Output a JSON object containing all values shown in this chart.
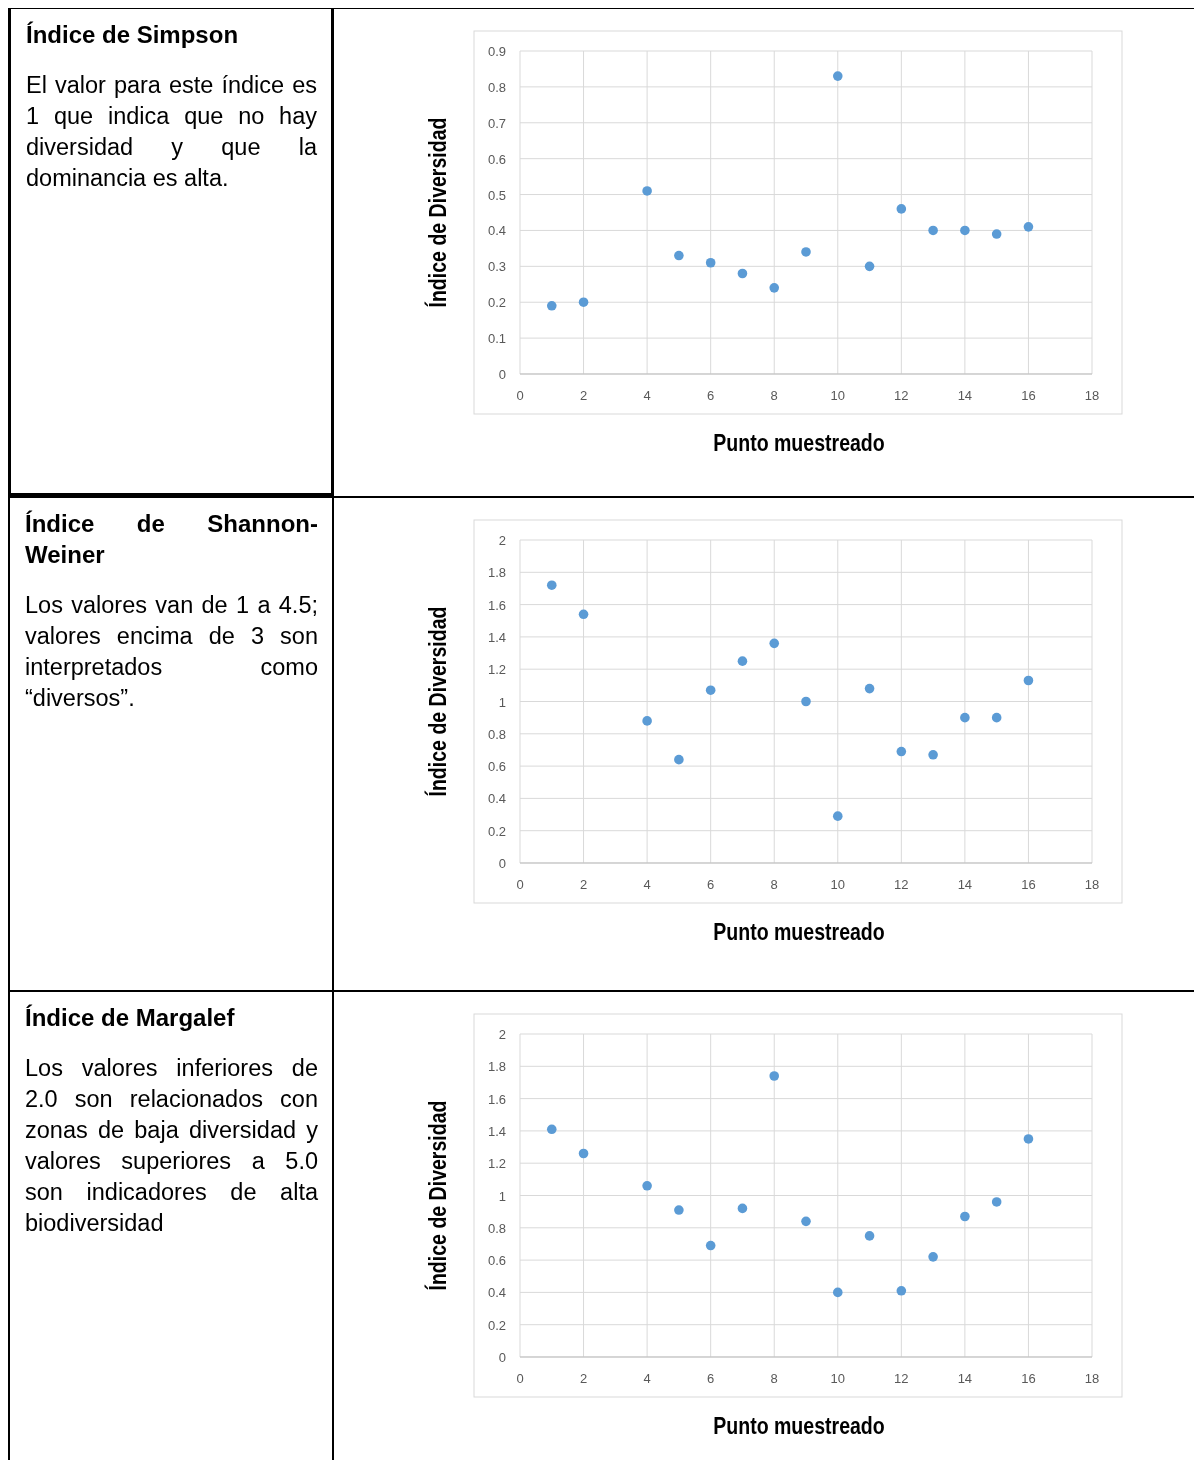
{
  "chart_data": [
    {
      "type": "other",
      "title": "Índice de Simpson",
      "annotations": [
        "El valor para este índice es 1 que indica que no hay diversidad y que la dominancia es alta."
      ]
    },
    {
      "type": "scatter",
      "xlabel": "Punto muestreado",
      "ylabel": "Índice de Diversidad",
      "x": [
        1,
        2,
        4,
        5,
        6,
        7,
        8,
        9,
        10,
        11,
        12,
        13,
        14,
        15,
        16
      ],
      "series": [
        {
          "color": "#5b9bd5",
          "values": [
            0.19,
            0.2,
            0.51,
            0.33,
            0.31,
            0.28,
            0.24,
            0.34,
            0.83,
            0.3,
            0.46,
            0.4,
            0.4,
            0.39,
            0.41
          ]
        }
      ],
      "xlim": [
        0,
        18
      ],
      "xticks": [
        0,
        2,
        4,
        6,
        8,
        10,
        12,
        14,
        16,
        18
      ],
      "ylim": [
        0,
        0.9
      ],
      "yticks": [
        0,
        0.1,
        0.2,
        0.3,
        0.4,
        0.5,
        0.6,
        0.7,
        0.8,
        0.9
      ],
      "grid": true,
      "marker": "circle"
    },
    {
      "type": "other",
      "title": "Índice de Shannon-Weiner",
      "annotations": [
        "Los valores van de 1 a 4.5; valores encima de 3 son interpretados como “diversos”."
      ]
    },
    {
      "type": "scatter",
      "xlabel": "Punto muestreado",
      "ylabel": "Índice de Diversidad",
      "x": [
        1,
        2,
        4,
        5,
        6,
        7,
        8,
        9,
        10,
        11,
        12,
        13,
        14,
        15,
        16
      ],
      "series": [
        {
          "color": "#5b9bd5",
          "values": [
            1.72,
            1.54,
            0.88,
            0.64,
            1.07,
            1.25,
            1.36,
            1.0,
            0.29,
            1.08,
            0.69,
            0.67,
            0.9,
            0.9,
            1.13
          ]
        }
      ],
      "xlim": [
        0,
        18
      ],
      "xticks": [
        0,
        2,
        4,
        6,
        8,
        10,
        12,
        14,
        16,
        18
      ],
      "ylim": [
        0,
        2
      ],
      "yticks": [
        0,
        0.2,
        0.4,
        0.6,
        0.8,
        1,
        1.2,
        1.4,
        1.6,
        1.8,
        2
      ],
      "grid": true,
      "marker": "circle"
    },
    {
      "type": "other",
      "title": "Índice de Margalef",
      "annotations": [
        "Los valores inferiores de 2.0 son relacionados con zonas de baja diversidad y valores superiores a 5.0 son indicadores de alta biodiversidad"
      ]
    },
    {
      "type": "scatter",
      "xlabel": "Punto muestreado",
      "ylabel": "Índice de Diversidad",
      "x": [
        1,
        2,
        4,
        5,
        6,
        7,
        8,
        9,
        10,
        11,
        12,
        13,
        14,
        15,
        16
      ],
      "series": [
        {
          "color": "#5b9bd5",
          "values": [
            1.41,
            1.26,
            1.06,
            0.91,
            0.69,
            0.92,
            1.74,
            0.84,
            0.4,
            0.75,
            0.41,
            0.62,
            0.87,
            0.96,
            1.35
          ]
        }
      ],
      "xlim": [
        0,
        18
      ],
      "xticks": [
        0,
        2,
        4,
        6,
        8,
        10,
        12,
        14,
        16,
        18
      ],
      "ylim": [
        0,
        2
      ],
      "yticks": [
        0,
        0.2,
        0.4,
        0.6,
        0.8,
        1,
        1.2,
        1.4,
        1.6,
        1.8,
        2
      ],
      "grid": true,
      "marker": "circle"
    }
  ]
}
